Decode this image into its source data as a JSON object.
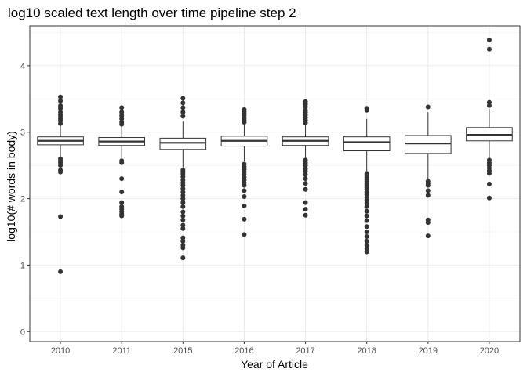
{
  "chart_data": {
    "type": "boxplot",
    "title": "log10 scaled text length over time pipeline step 2",
    "xlabel": "Year of Article",
    "ylabel": "log10(# words in body)",
    "ylim": [
      -0.15,
      4.6
    ],
    "yticks": [
      0,
      1,
      2,
      3,
      4
    ],
    "grid": true,
    "legend": "none",
    "categories": [
      "2010",
      "2011",
      "2015",
      "2016",
      "2017",
      "2018",
      "2019",
      "2020"
    ],
    "boxes": [
      {
        "category": "2010",
        "whisker_low": 2.63,
        "q1": 2.81,
        "median": 2.87,
        "q3": 2.93,
        "whisker_high": 3.1,
        "outliers": [
          3.53,
          3.47,
          3.4,
          3.36,
          3.3,
          3.26,
          3.23,
          3.2,
          3.17,
          3.13,
          2.6,
          2.57,
          2.54,
          2.5,
          2.43,
          2.4,
          1.73,
          0.9
        ]
      },
      {
        "category": "2011",
        "whisker_low": 2.61,
        "q1": 2.8,
        "median": 2.86,
        "q3": 2.92,
        "whisker_high": 3.1,
        "outliers": [
          3.37,
          3.3,
          3.25,
          3.2,
          3.15,
          3.12,
          2.57,
          2.54,
          2.3,
          2.1,
          1.94,
          1.88,
          1.84,
          1.8,
          1.77,
          1.74
        ]
      },
      {
        "category": "2015",
        "whisker_low": 2.47,
        "q1": 2.74,
        "median": 2.84,
        "q3": 2.91,
        "whisker_high": 3.16,
        "outliers": [
          3.51,
          3.44,
          3.37,
          3.3,
          3.24,
          2.43,
          2.4,
          2.37,
          2.33,
          2.28,
          2.24,
          2.2,
          2.15,
          2.1,
          2.05,
          2.0,
          1.94,
          1.88,
          1.8,
          1.74,
          1.68,
          1.6,
          1.55,
          1.41,
          1.36,
          1.3,
          1.26,
          1.11
        ]
      },
      {
        "category": "2016",
        "whisker_low": 2.56,
        "q1": 2.79,
        "median": 2.87,
        "q3": 2.94,
        "whisker_high": 3.13,
        "outliers": [
          3.34,
          3.31,
          3.28,
          3.25,
          3.21,
          3.18,
          3.15,
          2.52,
          2.48,
          2.44,
          2.4,
          2.36,
          2.32,
          2.28,
          2.24,
          2.2,
          2.12,
          2.03,
          1.89,
          1.69,
          1.46
        ]
      },
      {
        "category": "2017",
        "whisker_low": 2.6,
        "q1": 2.8,
        "median": 2.87,
        "q3": 2.93,
        "whisker_high": 3.11,
        "outliers": [
          3.46,
          3.42,
          3.38,
          3.33,
          3.3,
          3.26,
          3.22,
          3.18,
          3.14,
          2.58,
          2.54,
          2.5,
          2.45,
          2.41,
          2.36,
          2.3,
          2.23,
          2.14,
          1.94,
          1.84,
          1.75
        ]
      },
      {
        "category": "2018",
        "whisker_low": 2.4,
        "q1": 2.72,
        "median": 2.85,
        "q3": 2.93,
        "whisker_high": 3.2,
        "outliers": [
          3.36,
          3.33,
          2.38,
          2.35,
          2.32,
          2.29,
          2.26,
          2.23,
          2.2,
          2.17,
          2.14,
          2.1,
          2.06,
          2.02,
          1.98,
          1.93,
          1.88,
          1.81,
          1.74,
          1.67,
          1.58,
          1.5,
          1.43,
          1.36,
          1.3,
          1.25,
          1.2
        ]
      },
      {
        "category": "2019",
        "whisker_low": 2.28,
        "q1": 2.68,
        "median": 2.83,
        "q3": 2.95,
        "whisker_high": 3.3,
        "outliers": [
          3.38,
          2.26,
          2.23,
          2.2,
          2.12,
          2.05,
          1.68,
          1.64,
          1.44
        ]
      },
      {
        "category": "2020",
        "whisker_low": 2.61,
        "q1": 2.87,
        "median": 2.96,
        "q3": 3.07,
        "whisker_high": 3.35,
        "outliers": [
          4.39,
          4.25,
          3.45,
          3.4,
          2.58,
          2.54,
          2.5,
          2.46,
          2.42,
          2.38,
          2.22,
          2.01
        ]
      }
    ]
  }
}
